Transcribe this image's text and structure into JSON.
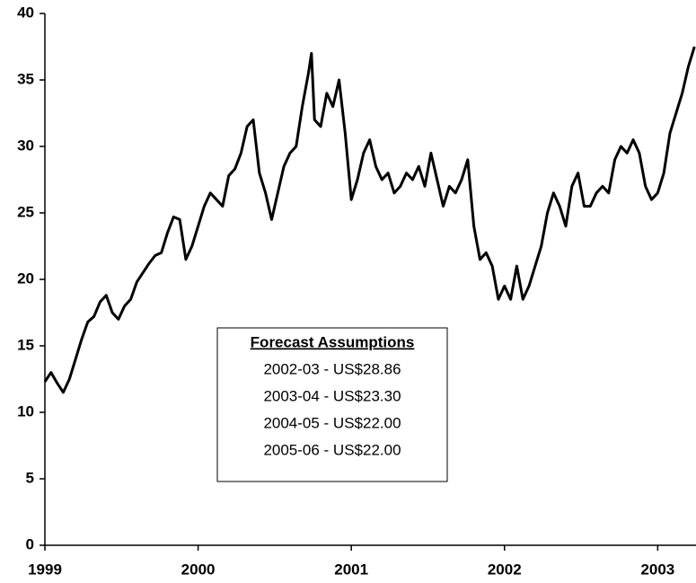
{
  "chart_data": {
    "type": "line",
    "x": [
      1999.0,
      1999.04,
      1999.08,
      1999.12,
      1999.16,
      1999.2,
      1999.24,
      1999.28,
      1999.32,
      1999.36,
      1999.4,
      1999.44,
      1999.48,
      1999.52,
      1999.56,
      1999.6,
      1999.64,
      1999.68,
      1999.72,
      1999.76,
      1999.8,
      1999.84,
      1999.88,
      1999.92,
      1999.96,
      2000.0,
      2000.04,
      2000.08,
      2000.12,
      2000.16,
      2000.2,
      2000.24,
      2000.28,
      2000.32,
      2000.36,
      2000.4,
      2000.44,
      2000.48,
      2000.52,
      2000.56,
      2000.6,
      2000.64,
      2000.68,
      2000.72,
      2000.74,
      2000.76,
      2000.8,
      2000.84,
      2000.88,
      2000.92,
      2000.96,
      2001.0,
      2001.04,
      2001.08,
      2001.12,
      2001.16,
      2001.2,
      2001.24,
      2001.28,
      2001.32,
      2001.36,
      2001.4,
      2001.44,
      2001.48,
      2001.52,
      2001.56,
      2001.6,
      2001.64,
      2001.68,
      2001.72,
      2001.76,
      2001.8,
      2001.84,
      2001.88,
      2001.92,
      2001.96,
      2002.0,
      2002.04,
      2002.08,
      2002.12,
      2002.16,
      2002.2,
      2002.24,
      2002.28,
      2002.32,
      2002.36,
      2002.4,
      2002.44,
      2002.48,
      2002.52,
      2002.56,
      2002.6,
      2002.64,
      2002.68,
      2002.72,
      2002.76,
      2002.8,
      2002.84,
      2002.88,
      2002.92,
      2002.96,
      2003.0,
      2003.04,
      2003.08,
      2003.12,
      2003.16,
      2003.2,
      2003.24
    ],
    "values": [
      12.3,
      13,
      12.2,
      11.5,
      12.5,
      14,
      15.5,
      16.8,
      17.2,
      18.3,
      18.8,
      17.5,
      17,
      18,
      18.5,
      19.8,
      20.5,
      21.2,
      21.8,
      22,
      23.5,
      24.7,
      24.5,
      21.5,
      22.5,
      24,
      25.5,
      26.5,
      26,
      25.5,
      27.8,
      28.3,
      29.5,
      31.5,
      32,
      28,
      26.5,
      24.5,
      26.5,
      28.5,
      29.5,
      30,
      33,
      35.5,
      37,
      32,
      31.5,
      34,
      33,
      35,
      31,
      26,
      27.5,
      29.5,
      30.5,
      28.5,
      27.5,
      28,
      26.5,
      27,
      28,
      27.5,
      28.5,
      27,
      29.5,
      27.5,
      25.5,
      27,
      26.5,
      27.5,
      29,
      24,
      21.5,
      22,
      21,
      18.5,
      19.5,
      18.5,
      21,
      18.5,
      19.5,
      21,
      22.5,
      25,
      26.5,
      25.5,
      24,
      27,
      28,
      25.5,
      25.5,
      26.5,
      27,
      26.5,
      29,
      30,
      29.5,
      30.5,
      29.5,
      27,
      26,
      26.5,
      28,
      31,
      32.5,
      34,
      36,
      37.5
    ],
    "color": "#000000",
    "xlim": [
      1999,
      2003.25
    ],
    "xticks": [
      1999,
      2000,
      2001,
      2002,
      2003
    ],
    "ylim": [
      0,
      40
    ],
    "yticks": [
      0,
      5,
      10,
      15,
      20,
      25,
      30,
      35,
      40
    ],
    "grid": false,
    "annotation": {
      "title": "Forecast Assumptions",
      "lines": [
        "2002-03 - US$28.86",
        "2003-04 - US$23.30",
        "2004-05 - US$22.00",
        "2005-06 - US$22.00"
      ]
    }
  }
}
